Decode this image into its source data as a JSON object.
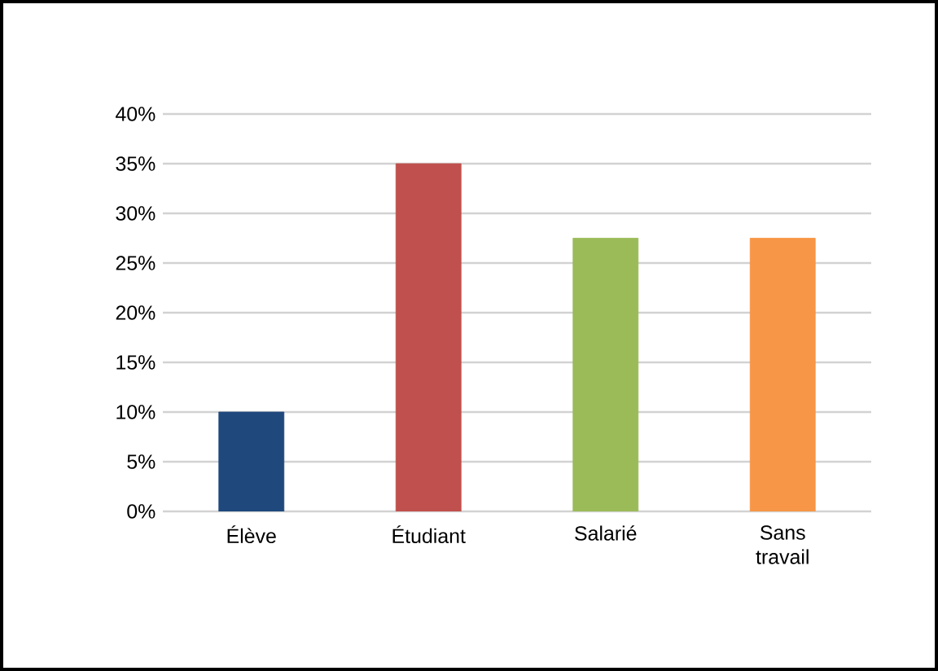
{
  "chart_data": {
    "type": "bar",
    "categories": [
      "Élève",
      "Étudiant",
      "Salarié",
      "Sans travail"
    ],
    "values": [
      10,
      35,
      27.5,
      27.5
    ],
    "colors": [
      "#1f497d",
      "#c0504d",
      "#9bbb59",
      "#f79646"
    ],
    "ylim": [
      0,
      40
    ],
    "yticks": [
      {
        "value": 0,
        "label": "0%"
      },
      {
        "value": 5,
        "label": "5%"
      },
      {
        "value": 10,
        "label": "10%"
      },
      {
        "value": 15,
        "label": "15%"
      },
      {
        "value": 20,
        "label": "20%"
      },
      {
        "value": 25,
        "label": "25%"
      },
      {
        "value": 30,
        "label": "30%"
      },
      {
        "value": 35,
        "label": "35%"
      },
      {
        "value": 40,
        "label": "40%"
      }
    ],
    "grid": "y"
  }
}
